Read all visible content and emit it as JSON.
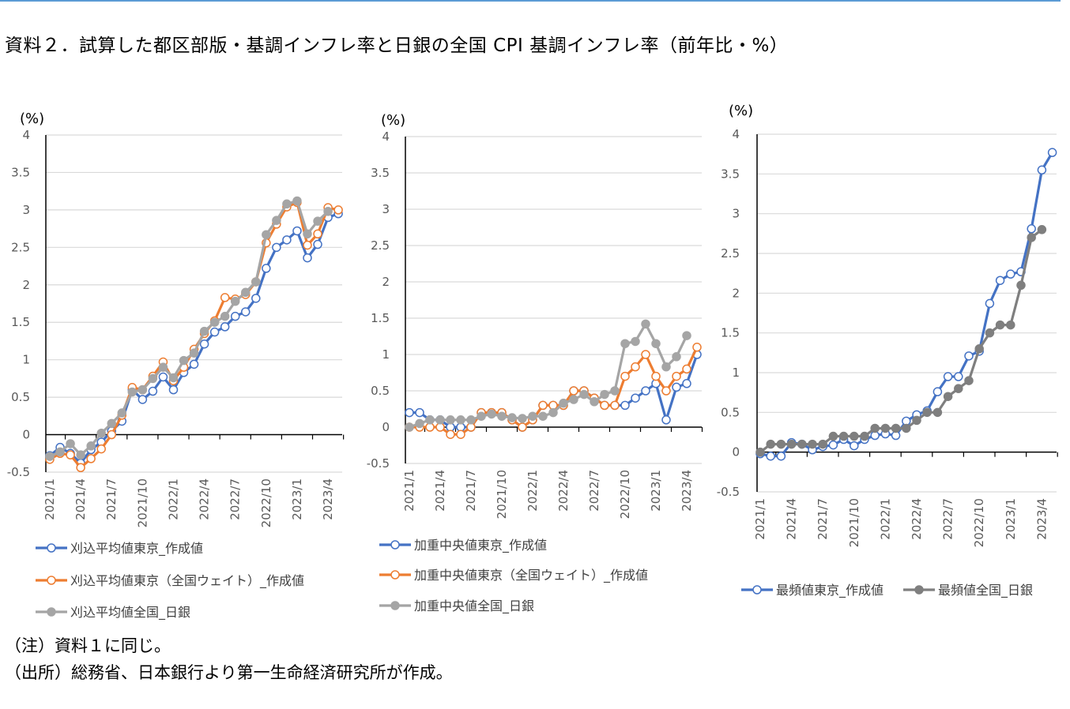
{
  "title": "資料２．試算した都区部版・基調インフレ率と日銀の全国 CPI 基調インフレ率（前年比・%）",
  "notes": [
    "（注）資料１に同じ。",
    "（出所）総務省、日本銀行より第一生命経済研究所が作成。"
  ],
  "colors": {
    "blue": "#4472C4",
    "orange": "#ED7D31",
    "gray": "#A5A5A5",
    "dark_gray": "#7F7F7F"
  },
  "chart_data": [
    {
      "type": "line",
      "ylabel": "(%)",
      "ylim": [
        -0.5,
        4
      ],
      "yticks": [
        "-0.5",
        "0",
        "0.5",
        "1",
        "1.5",
        "2",
        "2.5",
        "3",
        "3.5",
        "4"
      ],
      "xtick_labels": [
        "2021/1",
        "2021/4",
        "2021/7",
        "2021/10",
        "2022/1",
        "2022/4",
        "2022/7",
        "2022/10",
        "2023/1",
        "2023/4"
      ],
      "x_start": "2021/1",
      "x_frequency": "monthly",
      "grid": true,
      "legend": "bottom",
      "series": [
        {
          "name": "刈込平均値東京_作成値",
          "color": "#4472C4",
          "marker": "hollow-circle",
          "values": [
            -0.28,
            -0.17,
            -0.25,
            -0.38,
            -0.2,
            -0.1,
            0.05,
            0.18,
            0.6,
            0.47,
            0.58,
            0.77,
            0.6,
            0.83,
            0.94,
            1.21,
            1.37,
            1.44,
            1.58,
            1.64,
            1.82,
            2.22,
            2.5,
            2.6,
            2.72,
            2.36,
            2.54,
            2.9,
            2.95
          ]
        },
        {
          "name": "刈込平均値東京（全国ウェイト）_作成値",
          "color": "#ED7D31",
          "marker": "hollow-circle",
          "values": [
            -0.33,
            -0.25,
            -0.27,
            -0.44,
            -0.32,
            -0.19,
            0.0,
            0.26,
            0.63,
            0.6,
            0.78,
            0.97,
            0.72,
            0.9,
            1.14,
            1.35,
            1.52,
            1.83,
            1.81,
            1.87,
            2.04,
            2.56,
            2.81,
            3.04,
            3.1,
            2.53,
            2.68,
            3.03,
            3.0
          ]
        },
        {
          "name": "刈込平均値全国_日銀",
          "color": "#A5A5A5",
          "marker": "filled-circle",
          "values": [
            -0.29,
            -0.23,
            -0.12,
            -0.27,
            -0.15,
            0.02,
            0.15,
            0.29,
            0.57,
            0.6,
            0.75,
            0.9,
            0.76,
            0.99,
            1.09,
            1.38,
            1.5,
            1.58,
            1.78,
            1.9,
            2.04,
            2.67,
            2.86,
            3.08,
            3.12,
            2.68,
            2.85,
            2.98
          ]
        }
      ]
    },
    {
      "type": "line",
      "ylabel": "(%)",
      "ylim": [
        -0.5,
        4
      ],
      "yticks": [
        "-0.5",
        "0",
        "0.5",
        "1",
        "1.5",
        "2",
        "2.5",
        "3",
        "3.5",
        "4"
      ],
      "xtick_labels": [
        "2021/1",
        "2021/4",
        "2021/7",
        "2021/10",
        "2022/1",
        "2022/4",
        "2022/7",
        "2022/10",
        "2023/1",
        "2023/4"
      ],
      "x_start": "2021/1",
      "x_frequency": "monthly",
      "grid": true,
      "legend": "bottom",
      "series": [
        {
          "name": "加重中央値東京_作成値",
          "color": "#4472C4",
          "marker": "hollow-circle",
          "values": [
            0.2,
            0.2,
            0.1,
            0.1,
            0.0,
            0.0,
            0.0,
            0.2,
            0.2,
            0.2,
            0.1,
            0.0,
            0.1,
            0.3,
            0.3,
            0.3,
            0.5,
            0.5,
            0.4,
            0.3,
            0.3,
            0.3,
            0.4,
            0.5,
            0.6,
            0.1,
            0.55,
            0.6,
            1.0
          ]
        },
        {
          "name": "加重中央値東京（全国ウェイト）_作成値",
          "color": "#ED7D31",
          "marker": "hollow-circle",
          "values": [
            0.0,
            0.0,
            0.0,
            0.0,
            -0.1,
            -0.1,
            0.0,
            0.2,
            0.2,
            0.2,
            0.1,
            0.0,
            0.1,
            0.3,
            0.3,
            0.3,
            0.5,
            0.5,
            0.4,
            0.3,
            0.3,
            0.7,
            0.83,
            1.0,
            0.7,
            0.5,
            0.7,
            0.8,
            1.1
          ]
        },
        {
          "name": "加重中央値全国_日銀",
          "color": "#A5A5A5",
          "marker": "filled-circle",
          "values": [
            0.0,
            0.05,
            0.1,
            0.1,
            0.1,
            0.1,
            0.1,
            0.15,
            0.18,
            0.15,
            0.13,
            0.12,
            0.15,
            0.15,
            0.2,
            0.33,
            0.38,
            0.45,
            0.35,
            0.45,
            0.5,
            1.15,
            1.18,
            1.42,
            1.15,
            0.83,
            0.97,
            1.26
          ]
        }
      ]
    },
    {
      "type": "line",
      "ylabel": "(%)",
      "ylim": [
        -0.5,
        4
      ],
      "yticks": [
        "-0.5",
        "0",
        "0.5",
        "1",
        "1.5",
        "2",
        "2.5",
        "3",
        "3.5",
        "4"
      ],
      "xtick_labels": [
        "2021/1",
        "2021/4",
        "2021/7",
        "2021/10",
        "2022/1",
        "2022/4",
        "2022/7",
        "2022/10",
        "2023/1",
        "2023/4"
      ],
      "x_start": "2021/1",
      "x_frequency": "monthly",
      "grid": true,
      "legend": "bottom",
      "series": [
        {
          "name": "最頻値東京_作成値",
          "color": "#4472C4",
          "marker": "hollow-circle",
          "values": [
            -0.02,
            -0.05,
            -0.05,
            0.12,
            0.1,
            0.03,
            0.07,
            0.09,
            0.16,
            0.08,
            0.16,
            0.21,
            0.23,
            0.21,
            0.39,
            0.47,
            0.52,
            0.76,
            0.95,
            0.95,
            1.21,
            1.27,
            1.87,
            2.16,
            2.24,
            2.27,
            2.81,
            3.55,
            3.77
          ]
        },
        {
          "name": "最頻値全国_日銀",
          "color": "#7F7F7F",
          "marker": "filled-circle",
          "values": [
            0.0,
            0.1,
            0.1,
            0.1,
            0.1,
            0.1,
            0.1,
            0.2,
            0.2,
            0.2,
            0.2,
            0.3,
            0.3,
            0.3,
            0.3,
            0.4,
            0.5,
            0.5,
            0.7,
            0.8,
            0.9,
            1.3,
            1.5,
            1.6,
            1.6,
            2.1,
            2.7,
            2.8
          ]
        }
      ]
    }
  ]
}
